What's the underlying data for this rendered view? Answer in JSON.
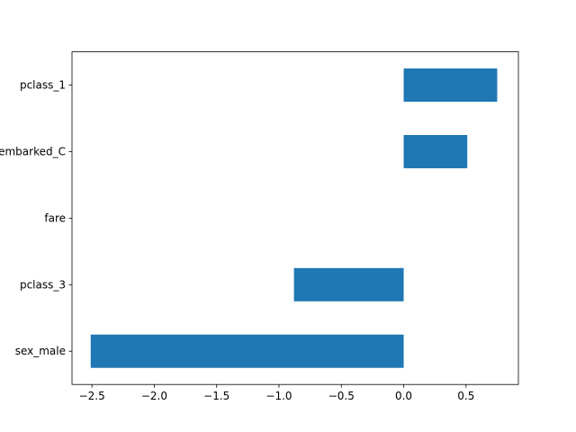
{
  "chart_data": {
    "type": "barh",
    "categories": [
      "sex_male",
      "pclass_3",
      "fare",
      "embarked_C",
      "pclass_1"
    ],
    "values": [
      -2.51,
      -0.88,
      0.0,
      0.51,
      0.75
    ],
    "color": "#1f77b4",
    "xlim": [
      -2.66,
      0.92
    ],
    "xticks": [
      {
        "value": -2.5,
        "label": "−2.5"
      },
      {
        "value": -2.0,
        "label": "−2.0"
      },
      {
        "value": -1.5,
        "label": "−1.5"
      },
      {
        "value": -1.0,
        "label": "−1.0"
      },
      {
        "value": -0.5,
        "label": "−0.5"
      },
      {
        "value": 0.0,
        "label": "0.0"
      },
      0.5
    ]
  }
}
